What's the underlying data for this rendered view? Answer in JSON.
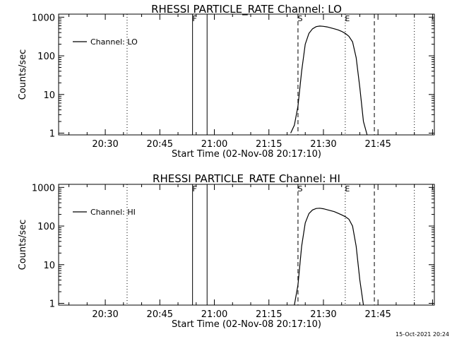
{
  "chart_data": [
    {
      "type": "line",
      "title": "RHESSI PARTICLE_RATE Channel: LO",
      "xlabel": "Start Time (02-Nov-08 20:17:10)",
      "ylabel": "Counts/sec",
      "y_scale": "log",
      "ylim": [
        0.9,
        1200
      ],
      "x_ticks": [
        "20:30",
        "20:45",
        "21:00",
        "21:15",
        "21:30",
        "21:45"
      ],
      "y_ticks": [
        "1",
        "10",
        "100",
        "1000"
      ],
      "legend": "top-left",
      "series": [
        {
          "name": "Channel: LO",
          "x": [
            "21:21",
            "21:22",
            "21:23",
            "21:24",
            "21:25",
            "21:26",
            "21:27",
            "21:28",
            "21:29",
            "21:30",
            "21:31",
            "21:32",
            "21:33",
            "21:34",
            "21:35",
            "21:36",
            "21:37",
            "21:38",
            "21:39",
            "21:40",
            "21:41",
            "21:42"
          ],
          "values": [
            1,
            1.6,
            5,
            40,
            200,
            380,
            500,
            570,
            590,
            580,
            560,
            530,
            500,
            470,
            430,
            380,
            320,
            230,
            90,
            15,
            2,
            0.9
          ]
        }
      ],
      "vlines": [
        {
          "x": "20:36",
          "style": "dotted",
          "label": ""
        },
        {
          "x": "20:54",
          "style": "solid",
          "label": "F"
        },
        {
          "x": "20:58",
          "style": "solid",
          "label": ""
        },
        {
          "x": "21:23",
          "style": "dashed",
          "label": "S"
        },
        {
          "x": "21:36",
          "style": "dotted",
          "label": "E"
        },
        {
          "x": "21:44",
          "style": "dashed",
          "label": ""
        },
        {
          "x": "21:55",
          "style": "dotted",
          "label": ""
        }
      ]
    },
    {
      "type": "line",
      "title": "RHESSI PARTICLE_RATE Channel: HI",
      "xlabel": "Start Time (02-Nov-08 20:17:10)",
      "ylabel": "Counts/sec",
      "y_scale": "log",
      "ylim": [
        0.9,
        1200
      ],
      "x_ticks": [
        "20:30",
        "20:45",
        "21:00",
        "21:15",
        "21:30",
        "21:45"
      ],
      "y_ticks": [
        "1",
        "10",
        "100",
        "1000"
      ],
      "legend": "top-left",
      "series": [
        {
          "name": "Channel: HI",
          "x": [
            "21:22",
            "21:23",
            "21:24",
            "21:25",
            "21:26",
            "21:27",
            "21:28",
            "21:29",
            "21:30",
            "21:31",
            "21:32",
            "21:33",
            "21:34",
            "21:35",
            "21:36",
            "21:37",
            "21:38",
            "21:39",
            "21:40",
            "21:41"
          ],
          "values": [
            0.9,
            3,
            30,
            120,
            210,
            260,
            285,
            290,
            280,
            265,
            250,
            235,
            215,
            195,
            175,
            150,
            100,
            30,
            4,
            0.9
          ]
        }
      ],
      "vlines": [
        {
          "x": "20:36",
          "style": "dotted",
          "label": ""
        },
        {
          "x": "20:54",
          "style": "solid",
          "label": "F"
        },
        {
          "x": "20:58",
          "style": "solid",
          "label": ""
        },
        {
          "x": "21:23",
          "style": "dashed",
          "label": "S"
        },
        {
          "x": "21:36",
          "style": "dotted",
          "label": "E"
        },
        {
          "x": "21:44",
          "style": "dashed",
          "label": ""
        },
        {
          "x": "21:55",
          "style": "dotted",
          "label": ""
        }
      ]
    }
  ],
  "footer": {
    "timestamp": "15-Oct-2021 20:24"
  },
  "colors": {
    "background": "#ffffff",
    "foreground": "#000000"
  }
}
